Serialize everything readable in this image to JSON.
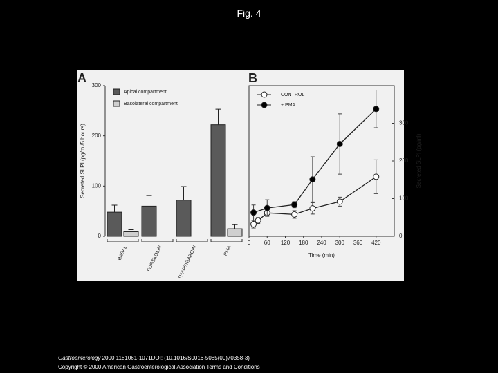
{
  "title": "Fig. 4",
  "chart_data": [
    {
      "type": "bar",
      "panel_label": "A",
      "y_label": "Secreted SLPI (pg/ml/5 hours)",
      "categories": [
        "BASAL",
        "FORSKOLIN",
        "THAPSIGARGIN",
        "PMA"
      ],
      "series": [
        {
          "name": "Apical compartment",
          "color": "#5a5a5a",
          "values": [
            48,
            60,
            72,
            222
          ],
          "errors": [
            14,
            21,
            27,
            31
          ]
        },
        {
          "name": "Basolateral compartment",
          "color": "#cfcfcf",
          "values": [
            9,
            null,
            null,
            15
          ],
          "errors": [
            4,
            null,
            null,
            8
          ]
        }
      ],
      "ylim": [
        0,
        300
      ],
      "yticks": [
        0,
        100,
        200,
        300
      ]
    },
    {
      "type": "line",
      "panel_label": "B",
      "x_label": "Time (min)",
      "y_label": "Secreted SLPI (pg/ml)",
      "series": [
        {
          "name": "CONTROL",
          "color": "#ffffff",
          "x": [
            15,
            30,
            60,
            150,
            210,
            300,
            420
          ],
          "values": [
            32,
            42,
            62,
            58,
            74,
            92,
            158
          ],
          "errors": [
            10,
            8,
            8,
            10,
            15,
            12,
            45
          ]
        },
        {
          "name": "+ PMA",
          "color": "#000000",
          "x": [
            15,
            60,
            150,
            210,
            300,
            420
          ],
          "values": [
            63,
            75,
            84,
            151,
            245,
            338
          ],
          "errors": [
            20,
            22,
            8,
            60,
            80,
            50
          ]
        }
      ],
      "xlim": [
        0,
        480
      ],
      "xticks": [
        0,
        60,
        120,
        180,
        240,
        300,
        360,
        420
      ],
      "ylim": [
        0,
        400
      ],
      "yticks": [
        0,
        100,
        200,
        300
      ]
    }
  ],
  "caption": {
    "journal": "Gastroenterology",
    "citation": "2000 1181061-1071DOI: (10.1016/S0016-5085(00)70358-3)",
    "copyright": "Copyright © 2000 American Gastroenterological Association",
    "link": "Terms and Conditions"
  }
}
